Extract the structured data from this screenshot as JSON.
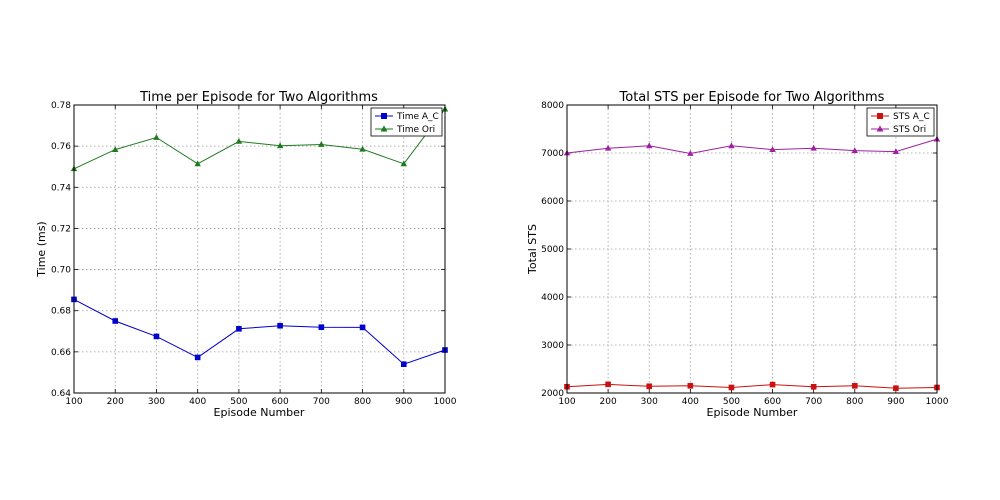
{
  "chart_data": [
    {
      "type": "line",
      "title": "Time per Episode for Two Algorithms",
      "xlabel": "Episode Number",
      "ylabel": "Time (ms)",
      "x": [
        100,
        200,
        300,
        400,
        500,
        600,
        700,
        800,
        900,
        1000
      ],
      "xlim": [
        100,
        1000
      ],
      "ylim": [
        0.64,
        0.78
      ],
      "xticks": [
        "100",
        "200",
        "300",
        "400",
        "500",
        "600",
        "700",
        "800",
        "900",
        "1000"
      ],
      "yticks": [
        "0.64",
        "0.66",
        "0.68",
        "0.70",
        "0.72",
        "0.74",
        "0.76",
        "0.78"
      ],
      "grid": true,
      "legend": "top-right",
      "series": [
        {
          "name": "Time A_C",
          "color": "#0000cc",
          "marker": "square",
          "values": [
            0.6855,
            0.675,
            0.6675,
            0.6573,
            0.6712,
            0.6727,
            0.672,
            0.6719,
            0.654,
            0.6609
          ]
        },
        {
          "name": "Time Ori",
          "color": "#1f7a1f",
          "marker": "triangle",
          "values": [
            0.749,
            0.7583,
            0.7642,
            0.7514,
            0.7623,
            0.7602,
            0.7608,
            0.7585,
            0.7514,
            0.778
          ]
        }
      ]
    },
    {
      "type": "line",
      "title": "Total STS per Episode for Two Algorithms",
      "xlabel": "Episode Number",
      "ylabel": "Total STS",
      "x": [
        100,
        200,
        300,
        400,
        500,
        600,
        700,
        800,
        900,
        1000
      ],
      "xlim": [
        100,
        1000
      ],
      "ylim": [
        2000,
        8000
      ],
      "xticks": [
        "100",
        "200",
        "300",
        "400",
        "500",
        "600",
        "700",
        "800",
        "900",
        "1000"
      ],
      "yticks": [
        "2000",
        "3000",
        "4000",
        "5000",
        "6000",
        "7000",
        "8000"
      ],
      "grid": true,
      "legend": "top-right",
      "series": [
        {
          "name": "STS A_C",
          "color": "#cc1111",
          "marker": "square",
          "values": [
            2130,
            2180,
            2140,
            2150,
            2115,
            2175,
            2130,
            2150,
            2100,
            2115
          ]
        },
        {
          "name": "STS Ori",
          "color": "#a020a0",
          "marker": "triangle",
          "values": [
            7000,
            7100,
            7150,
            6990,
            7150,
            7070,
            7100,
            7050,
            7030,
            7290
          ]
        }
      ]
    }
  ]
}
